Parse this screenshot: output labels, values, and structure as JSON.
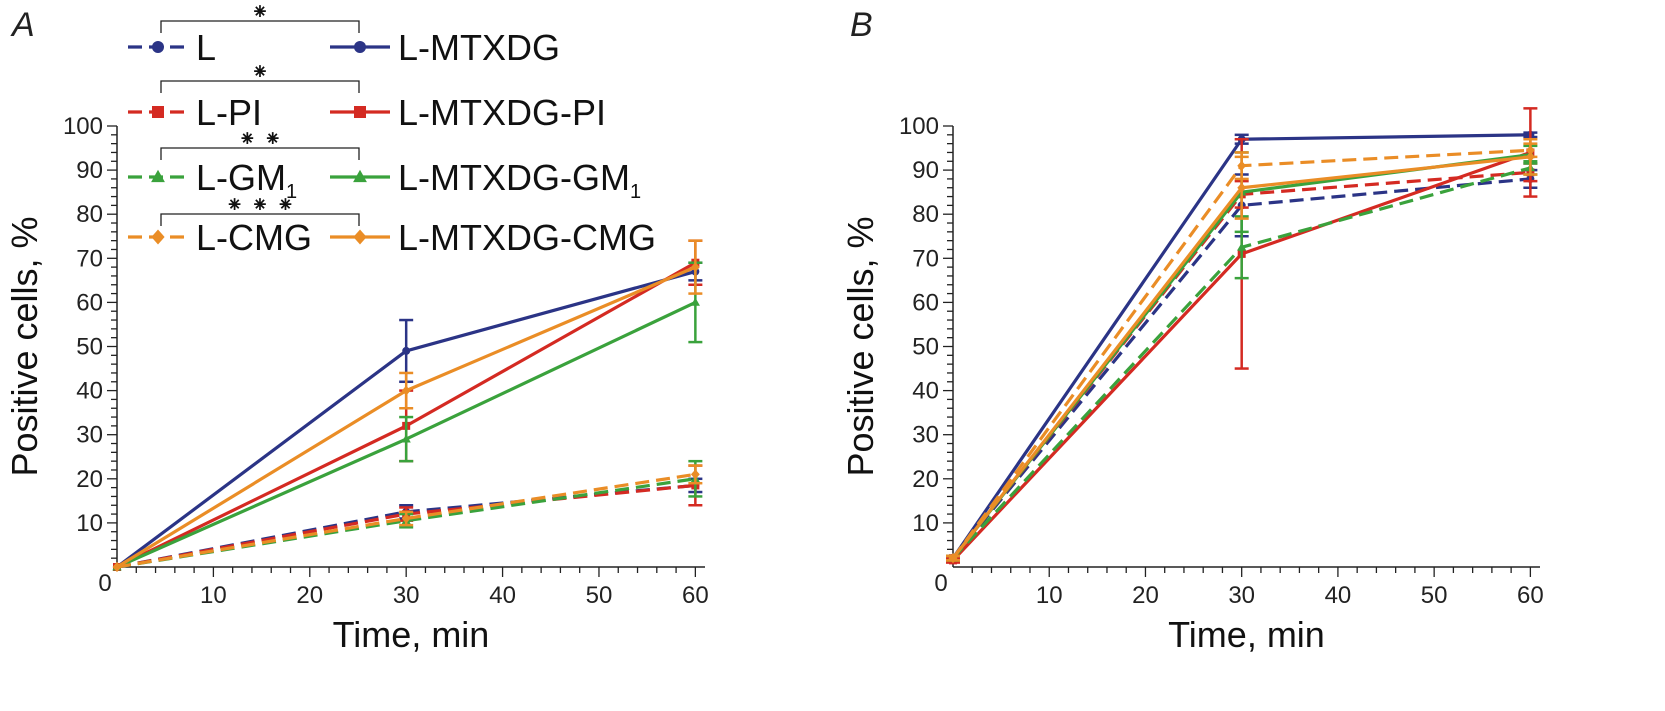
{
  "legend": {
    "items": [
      {
        "label": "L",
        "color": "#2b3486",
        "dash": true,
        "marker": "circle"
      },
      {
        "label": "L-MTXDG",
        "color": "#2b3486",
        "dash": false,
        "marker": "circle"
      },
      {
        "label": "L-PI",
        "color": "#d42a22",
        "dash": true,
        "marker": "square"
      },
      {
        "label": "L-MTXDG-PI",
        "color": "#d42a22",
        "dash": false,
        "marker": "square"
      },
      {
        "label": "L-GM",
        "sub": "1",
        "color": "#3aa23c",
        "dash": true,
        "marker": "triangle"
      },
      {
        "label": "L-MTXDG-GM",
        "sub": "1",
        "color": "#3aa23c",
        "dash": false,
        "marker": "triangle"
      },
      {
        "label": "L-CMG",
        "color": "#ea8d26",
        "dash": true,
        "marker": "diamond"
      },
      {
        "label": "L-MTXDG-CMG",
        "color": "#ea8d26",
        "dash": false,
        "marker": "diamond"
      }
    ],
    "significance": [
      "⁕",
      "⁕",
      "⁕ ⁕",
      "⁕ ⁕ ⁕"
    ]
  },
  "chart_data": [
    {
      "type": "line",
      "panel": "A",
      "xlabel": "Time, min",
      "ylabel": "Positive cells, %",
      "xlim": [
        0,
        61
      ],
      "ylim": [
        0,
        100
      ],
      "x_ticks": [
        10,
        20,
        30,
        40,
        50,
        60
      ],
      "y_ticks": [
        10,
        20,
        30,
        40,
        50,
        60,
        70,
        80,
        90,
        100
      ],
      "origin_label": "0",
      "x": [
        0,
        30,
        60
      ],
      "series": [
        {
          "name": "L",
          "color": "#2b3486",
          "dash": true,
          "marker": "circle",
          "values": [
            0,
            12.5,
            18.5
          ],
          "errors": [
            0,
            1.5,
            1.5
          ]
        },
        {
          "name": "L-MTXDG",
          "color": "#2b3486",
          "dash": false,
          "marker": "circle",
          "values": [
            0,
            49,
            67
          ],
          "errors": [
            0,
            7,
            2
          ]
        },
        {
          "name": "L-PI",
          "color": "#d42a22",
          "dash": true,
          "marker": "square",
          "values": [
            0,
            12,
            18.5
          ],
          "errors": [
            0,
            1.5,
            4.5
          ]
        },
        {
          "name": "L-MTXDG-PI",
          "color": "#d42a22",
          "dash": false,
          "marker": "square",
          "values": [
            0,
            32,
            69
          ],
          "errors": [
            0,
            8,
            5
          ]
        },
        {
          "name": "L-GM1",
          "color": "#3aa23c",
          "dash": true,
          "marker": "triangle",
          "values": [
            0,
            10.5,
            20
          ],
          "errors": [
            0,
            1.5,
            4
          ]
        },
        {
          "name": "L-MTXDG-GM1",
          "color": "#3aa23c",
          "dash": false,
          "marker": "triangle",
          "values": [
            0,
            29,
            60
          ],
          "errors": [
            0,
            5,
            9
          ]
        },
        {
          "name": "L-CMG",
          "color": "#ea8d26",
          "dash": true,
          "marker": "diamond",
          "values": [
            0,
            11,
            21
          ],
          "errors": [
            0,
            1.5,
            2
          ]
        },
        {
          "name": "L-MTXDG-CMG",
          "color": "#ea8d26",
          "dash": false,
          "marker": "diamond",
          "values": [
            0,
            40,
            68
          ],
          "errors": [
            0,
            4,
            6
          ]
        }
      ]
    },
    {
      "type": "line",
      "panel": "B",
      "xlabel": "Time, min",
      "ylabel": "Positive cells, %",
      "xlim": [
        0,
        61
      ],
      "ylim": [
        0,
        100
      ],
      "x_ticks": [
        10,
        20,
        30,
        40,
        50,
        60
      ],
      "y_ticks": [
        10,
        20,
        30,
        40,
        50,
        60,
        70,
        80,
        90,
        100
      ],
      "origin_label": "0",
      "x": [
        0,
        30,
        60
      ],
      "series": [
        {
          "name": "L",
          "color": "#2b3486",
          "dash": true,
          "marker": "circle",
          "values": [
            2,
            82,
            88
          ],
          "errors": [
            0.5,
            7,
            2
          ]
        },
        {
          "name": "L-MTXDG",
          "color": "#2b3486",
          "dash": false,
          "marker": "circle",
          "values": [
            2,
            97,
            98
          ],
          "errors": [
            0.5,
            1,
            0.5
          ]
        },
        {
          "name": "L-PI",
          "color": "#d42a22",
          "dash": true,
          "marker": "square",
          "values": [
            2,
            84.5,
            89.5
          ],
          "errors": [
            0.5,
            3,
            2
          ]
        },
        {
          "name": "L-MTXDG-PI",
          "color": "#d42a22",
          "dash": false,
          "marker": "square",
          "values": [
            1.5,
            71,
            94
          ],
          "errors": [
            0.5,
            26,
            10
          ]
        },
        {
          "name": "L-GM1",
          "color": "#3aa23c",
          "dash": true,
          "marker": "triangle",
          "values": [
            2,
            72.5,
            90.5
          ],
          "errors": [
            0.5,
            7,
            1.5
          ]
        },
        {
          "name": "L-MTXDG-GM1",
          "color": "#3aa23c",
          "dash": false,
          "marker": "triangle",
          "values": [
            2,
            85,
            93.5
          ],
          "errors": [
            0.5,
            9,
            2
          ]
        },
        {
          "name": "L-CMG",
          "color": "#ea8d26",
          "dash": true,
          "marker": "diamond",
          "values": [
            2,
            91,
            94.5
          ],
          "errors": [
            0.5,
            3,
            1.5
          ]
        },
        {
          "name": "L-MTXDG-CMG",
          "color": "#ea8d26",
          "dash": false,
          "marker": "diamond",
          "values": [
            2,
            86,
            93
          ],
          "errors": [
            0.5,
            7,
            4
          ]
        }
      ]
    }
  ]
}
